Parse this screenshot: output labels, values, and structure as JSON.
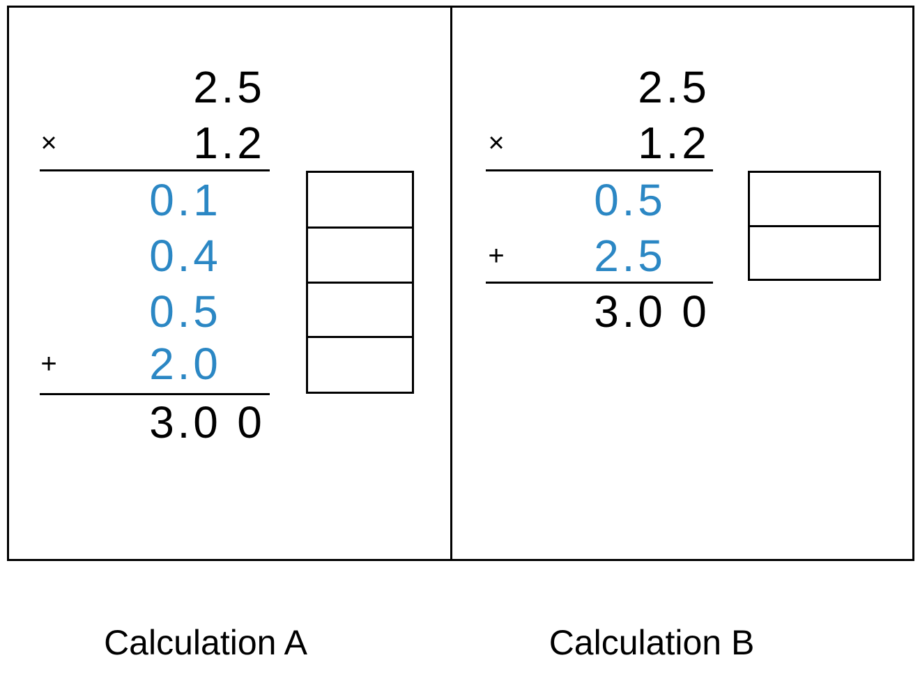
{
  "colors": {
    "background": "#ffffff",
    "black_digits": "#000000",
    "blue_digits": "#2b87c4",
    "rules_and_borders": "#000000"
  },
  "calculations": [
    {
      "caption": "Calculation A",
      "answer_boxes": 4,
      "rows": [
        {
          "type": "num",
          "op": "",
          "color": "black",
          "value": "2.5",
          "cells": [
            "",
            "",
            "2",
            ".",
            "5"
          ]
        },
        {
          "type": "num",
          "op": "×",
          "color": "black",
          "value": "1.2",
          "cells": [
            "",
            "",
            "1",
            ".",
            "2"
          ]
        },
        {
          "type": "rule"
        },
        {
          "type": "num",
          "op": "",
          "color": "blue",
          "value": "0.1",
          "cells": [
            "0",
            ".",
            "1",
            "",
            ""
          ]
        },
        {
          "type": "num",
          "op": "",
          "color": "blue",
          "value": "0.4",
          "cells": [
            "0",
            ".",
            "4",
            "",
            ""
          ]
        },
        {
          "type": "num",
          "op": "",
          "color": "blue",
          "value": "0.5",
          "cells": [
            "0",
            ".",
            "5",
            "",
            ""
          ]
        },
        {
          "type": "num",
          "op": "+",
          "color": "blue",
          "value": "2.0",
          "cells": [
            "2",
            ".",
            "0",
            "",
            ""
          ]
        },
        {
          "type": "rule"
        },
        {
          "type": "num",
          "op": "",
          "color": "black",
          "value": "3.00",
          "cells": [
            "3",
            ".",
            "0",
            "",
            "0"
          ]
        }
      ]
    },
    {
      "caption": "Calculation B",
      "answer_boxes": 2,
      "rows": [
        {
          "type": "num",
          "op": "",
          "color": "black",
          "value": "2.5",
          "cells": [
            "",
            "",
            "2",
            ".",
            "5"
          ]
        },
        {
          "type": "num",
          "op": "×",
          "color": "black",
          "value": "1.2",
          "cells": [
            "",
            "",
            "1",
            ".",
            "2"
          ]
        },
        {
          "type": "rule"
        },
        {
          "type": "num",
          "op": "",
          "color": "blue",
          "value": "0.5",
          "cells": [
            "0",
            ".",
            "5",
            "",
            ""
          ]
        },
        {
          "type": "num",
          "op": "+",
          "color": "blue",
          "value": "2.5",
          "cells": [
            "2",
            ".",
            "5",
            "",
            ""
          ]
        },
        {
          "type": "rule"
        },
        {
          "type": "num",
          "op": "",
          "color": "black",
          "value": "3.00",
          "cells": [
            "3",
            ".",
            "0",
            "",
            "0"
          ]
        }
      ]
    }
  ]
}
